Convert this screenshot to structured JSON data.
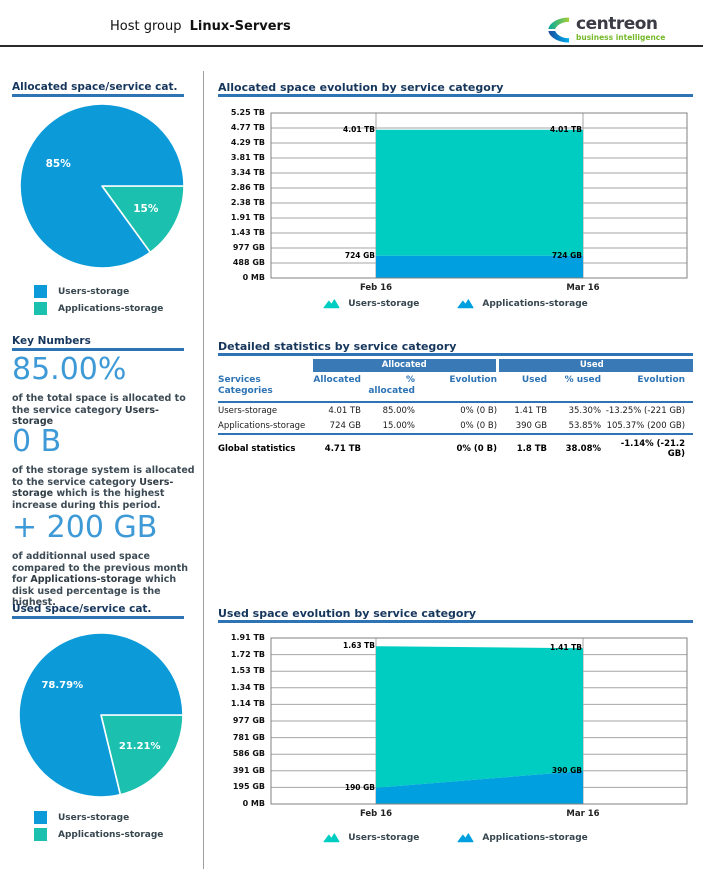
{
  "header": {
    "title_prefix": "Host group",
    "title_name": "Linux-Servers",
    "logo": {
      "brand": "centreon",
      "tagline": "business intelligence"
    }
  },
  "colors": {
    "accent_blue": "#2E74B5",
    "navy": "#16365C",
    "pie_blue": "#0C9BD8",
    "pie_teal": "#1BC0AE",
    "area_blue": "#009FE0",
    "area_teal": "#00CDC2",
    "big_number_blue": "#3E9AD6",
    "table_band_blue": "#3879B6",
    "logo_green": "#76B82A"
  },
  "left": {
    "key_numbers": {
      "title": "Key Numbers",
      "items": [
        {
          "value": "85.00%",
          "before": "of the total space is allocated to the service category",
          "highlight": "Users-storage",
          "after": ""
        },
        {
          "value": "0 B",
          "before": "of the storage system is allocated to the service category",
          "highlight": "Users-storage",
          "after": "which is the highest increase during this period."
        },
        {
          "value": "+ 200 GB",
          "before": "of additionnal used space compared to the previous month for",
          "highlight": "Applications-storage",
          "after": "which disk used percentage is the highest."
        }
      ]
    }
  },
  "main": {
    "table": {
      "title": "Detailed statistics by service category",
      "group_headers": [
        "Allocated",
        "Used"
      ],
      "columns": [
        "Services\nCategories",
        "Allocated",
        "%\nallocated",
        "Evolution",
        "Used",
        "% used",
        "Evolution"
      ],
      "rows": [
        [
          "Users-storage",
          "4.01 TB",
          "85.00%",
          "0% (0 B)",
          "1.41 TB",
          "35.30%",
          "-13.25% (-221 GB)"
        ],
        [
          "Applications-storage",
          "724 GB",
          "15.00%",
          "0% (0 B)",
          "390 GB",
          "53.85%",
          "105.37% (200 GB)"
        ]
      ],
      "footer": [
        "Global statistics",
        "4.71 TB",
        "",
        "0% (0 B)",
        "1.8 TB",
        "38.08%",
        "-1.14% (-21.2 GB)"
      ]
    }
  },
  "chart_data": [
    {
      "type": "pie",
      "title": "Allocated space/service cat.",
      "slices": [
        {
          "label": "Applications-storage",
          "pct": 15,
          "display": "15%",
          "color": "#1BC0AE"
        },
        {
          "label": "Users-storage",
          "pct": 85,
          "display": "85%",
          "color": "#0C9BD8"
        }
      ],
      "legend": [
        {
          "label": "Users-storage",
          "color": "#0C9BD8"
        },
        {
          "label": "Applications-storage",
          "color": "#1BC0AE"
        }
      ]
    },
    {
      "type": "area",
      "title": "Allocated space evolution by service category",
      "x": [
        "Feb 16",
        "Mar 16"
      ],
      "y_ticks": [
        "5.25 TB",
        "4.77 TB",
        "4.29 TB",
        "3.81 TB",
        "3.34 TB",
        "2.86 TB",
        "2.38 TB",
        "1.91 TB",
        "1.43 TB",
        "977 GB",
        "488 GB",
        "0 MB"
      ],
      "y_max_tb": 5.25,
      "grid": true,
      "legend_position": "bottom",
      "series": [
        {
          "name": "Applications-storage",
          "color": "#009FE0",
          "values_tb": [
            0.707,
            0.707
          ],
          "point_labels": [
            "724 GB",
            "724 GB"
          ]
        },
        {
          "name": "Users-storage",
          "color": "#00CDC2",
          "values_tb": [
            4.01,
            4.01
          ],
          "point_labels": [
            "4.01 TB",
            "4.01 TB"
          ]
        }
      ],
      "legend": [
        {
          "label": "Users-storage",
          "color": "#00CDC2"
        },
        {
          "label": "Applications-storage",
          "color": "#009FE0"
        }
      ]
    },
    {
      "type": "pie",
      "title": "Used space/service cat.",
      "slices": [
        {
          "label": "Applications-storage",
          "pct": 21.21,
          "display": "21.21%",
          "color": "#1BC0AE"
        },
        {
          "label": "Users-storage",
          "pct": 78.79,
          "display": "78.79%",
          "color": "#0C9BD8"
        }
      ],
      "legend": [
        {
          "label": "Users-storage",
          "color": "#0C9BD8"
        },
        {
          "label": "Applications-storage",
          "color": "#1BC0AE"
        }
      ]
    },
    {
      "type": "area",
      "title": "Used space evolution by service category",
      "x": [
        "Feb 16",
        "Mar 16"
      ],
      "y_ticks": [
        "1.91 TB",
        "1.72 TB",
        "1.53 TB",
        "1.34 TB",
        "1.14 TB",
        "977 GB",
        "781 GB",
        "586 GB",
        "391 GB",
        "195 GB",
        "0 MB"
      ],
      "y_max_tb": 1.91,
      "grid": true,
      "legend_position": "bottom",
      "series": [
        {
          "name": "Applications-storage",
          "color": "#009FE0",
          "values_tb": [
            0.186,
            0.381
          ],
          "point_labels": [
            "190 GB",
            "390 GB"
          ]
        },
        {
          "name": "Users-storage",
          "color": "#00CDC2",
          "values_tb": [
            1.63,
            1.41
          ],
          "point_labels": [
            "1.63 TB",
            "1.41 TB"
          ]
        }
      ],
      "legend": [
        {
          "label": "Users-storage",
          "color": "#00CDC2"
        },
        {
          "label": "Applications-storage",
          "color": "#009FE0"
        }
      ]
    }
  ]
}
